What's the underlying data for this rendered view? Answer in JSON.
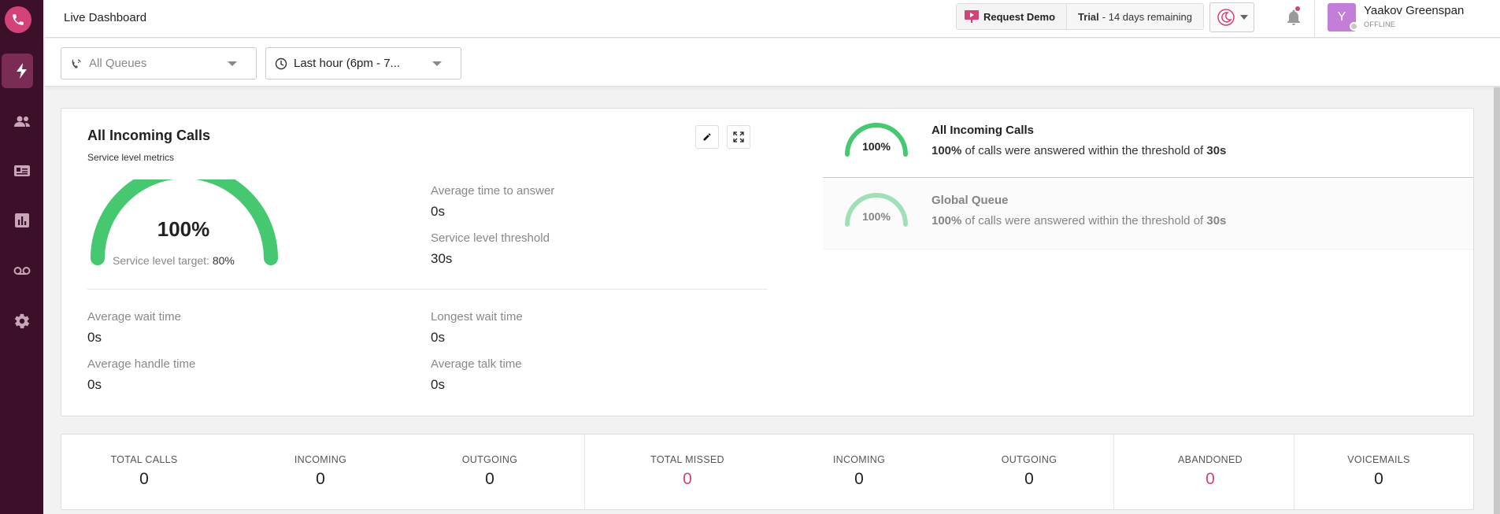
{
  "app": {
    "page_title": "Live Dashboard",
    "brand_color": "#d4427a",
    "sidebar_color": "#3b1028"
  },
  "sidebar": {
    "items": [
      {
        "icon": "phone-icon"
      },
      {
        "icon": "lightning-icon",
        "active": true
      },
      {
        "icon": "users-icon"
      },
      {
        "icon": "contact-card-icon"
      },
      {
        "icon": "bar-chart-icon"
      },
      {
        "icon": "voicemail-icon"
      },
      {
        "icon": "gear-icon"
      }
    ]
  },
  "header": {
    "request_demo_label": "Request Demo",
    "trial_bold": "Trial",
    "trial_text": "- 14 days remaining",
    "user": {
      "initial": "Y",
      "name": "Yaakov Greenspan",
      "status": "OFFLINE"
    }
  },
  "filters": {
    "queues_placeholder": "All Queues",
    "time_range": "Last hour (6pm - 7..."
  },
  "main_card": {
    "title": "All Incoming Calls",
    "subtitle": "Service level metrics",
    "gauge_value": "100%",
    "gauge_level": 1.0,
    "service_target_label": "Service level target:",
    "service_target_value": "80%",
    "metrics": {
      "avg_time_to_answer_label": "Average time to answer",
      "avg_time_to_answer": "0s",
      "service_threshold_label": "Service level threshold",
      "service_threshold": "30s",
      "avg_wait_label": "Average wait time",
      "avg_wait": "0s",
      "longest_wait_label": "Longest wait time",
      "longest_wait": "0s",
      "avg_handle_label": "Average handle time",
      "avg_handle": "0s",
      "avg_talk_label": "Average talk time",
      "avg_talk": "0s"
    }
  },
  "queues": [
    {
      "name": "All Incoming Calls",
      "value": "100%",
      "pct": "100%",
      "desc_mid": " of calls were answered within the threshold of ",
      "threshold": "30s"
    },
    {
      "name": "Global Queue",
      "value": "100%",
      "pct": "100%",
      "desc_mid": " of calls were answered within the threshold of ",
      "threshold": "30s"
    }
  ],
  "stats": [
    {
      "label": "TOTAL CALLS",
      "value": "0"
    },
    {
      "label": "INCOMING",
      "value": "0"
    },
    {
      "label": "OUTGOING",
      "value": "0"
    },
    {
      "label": "TOTAL MISSED",
      "value": "0"
    },
    {
      "label": "INCOMING",
      "value": "0"
    },
    {
      "label": "OUTGOING",
      "value": "0"
    },
    {
      "label": "ABANDONED",
      "value": "0"
    },
    {
      "label": "VOICEMAILS",
      "value": "0"
    }
  ]
}
